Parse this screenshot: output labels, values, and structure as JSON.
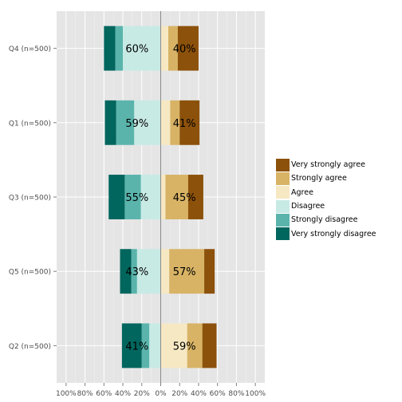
{
  "chart_data": {
    "type": "bar",
    "orientation": "horizontal",
    "stacking": "diverging",
    "grid": true,
    "legend_position": "right",
    "categories": [
      "Q4 (n=500)",
      "Q1 (n=500)",
      "Q3 (n=500)",
      "Q5 (n=500)",
      "Q2 (n=500)"
    ],
    "xlim": [
      -110,
      110
    ],
    "x_ticks": [
      -100,
      -80,
      -60,
      -40,
      -20,
      0,
      20,
      40,
      60,
      80,
      100
    ],
    "x_tick_labels": [
      "100%",
      "80%",
      "60%",
      "40%",
      "20%",
      "0%",
      "20%",
      "40%",
      "60%",
      "80%",
      "100%"
    ],
    "series": [
      {
        "name": "Very strongly disagree",
        "color": "#01665e",
        "side": "negative",
        "values": [
          12,
          12,
          17,
          12,
          21
        ]
      },
      {
        "name": "Strongly disagree",
        "color": "#5ab4ac",
        "side": "negative",
        "values": [
          8,
          19,
          17,
          6,
          8
        ]
      },
      {
        "name": "Disagree",
        "color": "#c7eae5",
        "side": "negative",
        "values": [
          40,
          28,
          21,
          25,
          12
        ]
      },
      {
        "name": "Agree",
        "color": "#f6e8c3",
        "side": "positive",
        "values": [
          8,
          10,
          5,
          9,
          28
        ]
      },
      {
        "name": "Strongly agree",
        "color": "#d8b365",
        "side": "positive",
        "values": [
          10,
          10,
          24,
          37,
          16
        ]
      },
      {
        "name": "Very strongly agree",
        "color": "#8c510a",
        "side": "positive",
        "values": [
          22,
          21,
          16,
          11,
          15
        ]
      }
    ],
    "annotations": {
      "negative": [
        "60%",
        "59%",
        "55%",
        "43%",
        "41%"
      ],
      "positive": [
        "40%",
        "41%",
        "45%",
        "57%",
        "59%"
      ]
    },
    "legend": [
      "Very strongly agree",
      "Strongly agree",
      "Agree",
      "Disagree",
      "Strongly disagree",
      "Very strongly disagree"
    ]
  }
}
